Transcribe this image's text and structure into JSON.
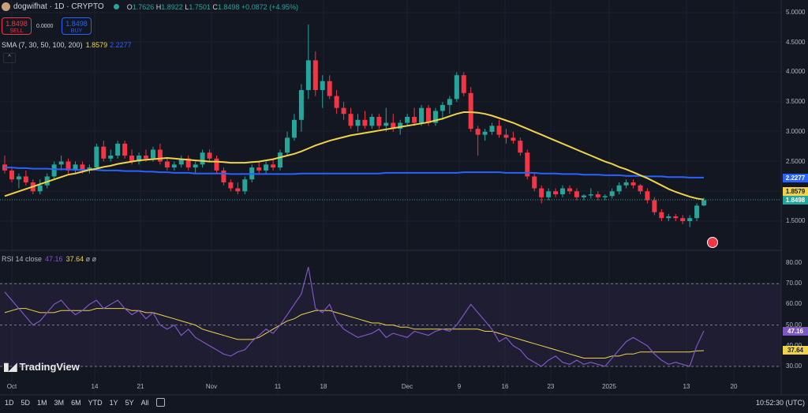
{
  "header": {
    "symbol": "dogwifhat · 1D · CRYPTO",
    "ohlc": {
      "o_label": "O",
      "o": "1.7626",
      "h_label": "H",
      "h": "1.8922",
      "l_label": "L",
      "l": "1.7501",
      "c_label": "C",
      "c": "1.8498",
      "change": "+0.0872 (+4.95%)"
    }
  },
  "trade": {
    "sell_price": "1.8498",
    "sell_label": "SELL",
    "spread": "0.0000",
    "buy_price": "1.8498",
    "buy_label": "BUY"
  },
  "sma": {
    "label": "SMA (7, 30, 50, 100, 200)",
    "val1": "1.8579",
    "val2": "2.2277"
  },
  "rsi": {
    "label": "RSI 14 close",
    "val1": "47.16",
    "val2": "37.64",
    "extra": "ø ø"
  },
  "price_axis": [
    "5.0000",
    "4.5000",
    "4.0000",
    "3.5000",
    "3.0000",
    "2.5000",
    "1.5000"
  ],
  "price_badges": {
    "blue": "2.2277",
    "yellow": "1.8579",
    "green": "1.8498"
  },
  "rsi_axis": [
    "80.00",
    "70.00",
    "60.00",
    "50.00",
    "40.00",
    "30.00"
  ],
  "rsi_badges": {
    "purple": "47.16",
    "yellow": "37.64"
  },
  "x_axis": [
    "Oct",
    "14",
    "21",
    "Nov",
    "11",
    "18",
    "Dec",
    "9",
    "16",
    "23",
    "2025",
    "13",
    "20"
  ],
  "timeframes": [
    "1D",
    "5D",
    "1M",
    "3M",
    "6M",
    "YTD",
    "1Y",
    "5Y",
    "All"
  ],
  "clock": "10:52:30 (UTC)",
  "brand": "TradingView",
  "colors": {
    "bg": "#131722",
    "up": "#26a69a",
    "down": "#f23645",
    "sma_fast": "#f0d34a",
    "sma_slow": "#2962ff",
    "rsi": "#7e57c2"
  },
  "chart_data": {
    "type": "candlestick",
    "price_range": [
      1.2,
      5.1
    ],
    "candles": [
      [
        2.45,
        2.6,
        2.3,
        2.35
      ],
      [
        2.35,
        2.4,
        2.15,
        2.2
      ],
      [
        2.2,
        2.3,
        2.05,
        2.25
      ],
      [
        2.25,
        2.35,
        2.1,
        2.15
      ],
      [
        2.15,
        2.2,
        1.95,
        2.0
      ],
      [
        2.0,
        2.2,
        1.95,
        2.1
      ],
      [
        2.1,
        2.3,
        2.05,
        2.25
      ],
      [
        2.25,
        2.5,
        2.2,
        2.45
      ],
      [
        2.45,
        2.6,
        2.35,
        2.5
      ],
      [
        2.5,
        2.55,
        2.3,
        2.35
      ],
      [
        2.35,
        2.5,
        2.3,
        2.45
      ],
      [
        2.45,
        2.5,
        2.3,
        2.35
      ],
      [
        2.35,
        2.45,
        2.3,
        2.4
      ],
      [
        2.4,
        2.8,
        2.35,
        2.75
      ],
      [
        2.75,
        2.85,
        2.5,
        2.55
      ],
      [
        2.55,
        2.7,
        2.5,
        2.6
      ],
      [
        2.6,
        2.85,
        2.55,
        2.8
      ],
      [
        2.8,
        2.85,
        2.55,
        2.6
      ],
      [
        2.6,
        2.7,
        2.45,
        2.5
      ],
      [
        2.5,
        2.65,
        2.45,
        2.6
      ],
      [
        2.6,
        2.7,
        2.5,
        2.55
      ],
      [
        2.55,
        2.75,
        2.5,
        2.7
      ],
      [
        2.7,
        2.8,
        2.45,
        2.5
      ],
      [
        2.5,
        2.55,
        2.35,
        2.4
      ],
      [
        2.4,
        2.5,
        2.35,
        2.45
      ],
      [
        2.45,
        2.6,
        2.4,
        2.55
      ],
      [
        2.55,
        2.6,
        2.35,
        2.4
      ],
      [
        2.4,
        2.5,
        2.3,
        2.45
      ],
      [
        2.45,
        2.7,
        2.4,
        2.65
      ],
      [
        2.65,
        2.7,
        2.5,
        2.55
      ],
      [
        2.55,
        2.6,
        2.3,
        2.35
      ],
      [
        2.35,
        2.4,
        2.1,
        2.15
      ],
      [
        2.15,
        2.2,
        2.0,
        2.05
      ],
      [
        2.05,
        2.15,
        1.95,
        2.0
      ],
      [
        2.0,
        2.25,
        1.95,
        2.2
      ],
      [
        2.2,
        2.45,
        2.15,
        2.4
      ],
      [
        2.4,
        2.5,
        2.3,
        2.35
      ],
      [
        2.35,
        2.5,
        2.3,
        2.45
      ],
      [
        2.45,
        2.55,
        2.35,
        2.4
      ],
      [
        2.4,
        2.7,
        2.35,
        2.65
      ],
      [
        2.65,
        3.0,
        2.6,
        2.9
      ],
      [
        2.9,
        3.3,
        2.85,
        3.2
      ],
      [
        3.2,
        3.8,
        3.0,
        3.7
      ],
      [
        3.7,
        4.8,
        3.55,
        4.2
      ],
      [
        4.2,
        4.35,
        3.6,
        3.7
      ],
      [
        3.7,
        3.95,
        3.4,
        3.85
      ],
      [
        3.85,
        3.95,
        3.55,
        3.6
      ],
      [
        3.6,
        3.7,
        3.3,
        3.4
      ],
      [
        3.4,
        3.5,
        3.2,
        3.3
      ],
      [
        3.3,
        3.4,
        3.05,
        3.1
      ],
      [
        3.1,
        3.3,
        3.0,
        3.2
      ],
      [
        3.2,
        3.35,
        3.05,
        3.1
      ],
      [
        3.1,
        3.3,
        3.05,
        3.25
      ],
      [
        3.25,
        3.3,
        3.05,
        3.1
      ],
      [
        3.1,
        3.4,
        3.0,
        3.15
      ],
      [
        3.15,
        3.3,
        3.0,
        3.05
      ],
      [
        3.05,
        3.2,
        2.95,
        3.15
      ],
      [
        3.15,
        3.3,
        3.1,
        3.25
      ],
      [
        3.25,
        3.4,
        3.1,
        3.15
      ],
      [
        3.15,
        3.45,
        3.1,
        3.4
      ],
      [
        3.4,
        3.45,
        3.1,
        3.15
      ],
      [
        3.15,
        3.4,
        3.1,
        3.35
      ],
      [
        3.35,
        3.5,
        3.2,
        3.45
      ],
      [
        3.45,
        3.6,
        3.3,
        3.55
      ],
      [
        3.55,
        4.0,
        3.5,
        3.95
      ],
      [
        3.95,
        4.0,
        3.6,
        3.65
      ],
      [
        3.65,
        3.75,
        3.0,
        3.05
      ],
      [
        3.05,
        3.1,
        2.6,
        2.95
      ],
      [
        2.95,
        3.05,
        2.85,
        3.0
      ],
      [
        3.0,
        3.15,
        2.95,
        3.1
      ],
      [
        3.1,
        3.2,
        2.9,
        2.95
      ],
      [
        2.95,
        3.05,
        2.8,
        2.9
      ],
      [
        2.9,
        3.0,
        2.8,
        2.85
      ],
      [
        2.85,
        2.9,
        2.6,
        2.65
      ],
      [
        2.65,
        2.7,
        2.2,
        2.25
      ],
      [
        2.25,
        2.3,
        2.0,
        2.05
      ],
      [
        2.05,
        2.1,
        1.8,
        1.9
      ],
      [
        1.9,
        2.05,
        1.85,
        2.0
      ],
      [
        2.0,
        2.05,
        1.9,
        1.95
      ],
      [
        1.95,
        2.1,
        1.9,
        2.05
      ],
      [
        2.05,
        2.1,
        1.95,
        2.0
      ],
      [
        2.0,
        2.05,
        1.85,
        1.9
      ],
      [
        1.9,
        1.95,
        1.85,
        1.93
      ],
      [
        1.93,
        2.05,
        1.88,
        1.95
      ],
      [
        1.95,
        2.0,
        1.85,
        1.9
      ],
      [
        1.9,
        1.95,
        1.85,
        1.92
      ],
      [
        1.92,
        2.05,
        1.88,
        2.0
      ],
      [
        2.0,
        2.15,
        1.95,
        2.1
      ],
      [
        2.1,
        2.2,
        2.05,
        2.15
      ],
      [
        2.15,
        2.2,
        2.05,
        2.1
      ],
      [
        2.1,
        2.12,
        1.95,
        2.0
      ],
      [
        2.0,
        2.05,
        1.8,
        1.85
      ],
      [
        1.85,
        1.9,
        1.6,
        1.65
      ],
      [
        1.65,
        1.7,
        1.5,
        1.55
      ],
      [
        1.55,
        1.62,
        1.5,
        1.58
      ],
      [
        1.58,
        1.62,
        1.5,
        1.55
      ],
      [
        1.55,
        1.6,
        1.45,
        1.5
      ],
      [
        1.5,
        1.6,
        1.4,
        1.55
      ],
      [
        1.55,
        1.8,
        1.5,
        1.76
      ],
      [
        1.7626,
        1.8922,
        1.7501,
        1.8498
      ]
    ],
    "sma_fast": [
      1.92,
      1.96,
      2.0,
      2.04,
      2.08,
      2.12,
      2.16,
      2.2,
      2.24,
      2.28,
      2.3,
      2.33,
      2.36,
      2.38,
      2.41,
      2.43,
      2.46,
      2.48,
      2.5,
      2.52,
      2.53,
      2.54,
      2.55,
      2.56,
      2.55,
      2.54,
      2.53,
      2.52,
      2.51,
      2.5,
      2.5,
      2.49,
      2.48,
      2.48,
      2.48,
      2.49,
      2.5,
      2.52,
      2.54,
      2.57,
      2.6,
      2.63,
      2.67,
      2.72,
      2.77,
      2.81,
      2.85,
      2.88,
      2.91,
      2.94,
      2.96,
      2.98,
      3.0,
      3.02,
      3.04,
      3.06,
      3.08,
      3.1,
      3.12,
      3.14,
      3.16,
      3.19,
      3.22,
      3.26,
      3.3,
      3.33,
      3.33,
      3.32,
      3.3,
      3.27,
      3.23,
      3.19,
      3.15,
      3.1,
      3.05,
      3.0,
      2.95,
      2.9,
      2.85,
      2.8,
      2.75,
      2.7,
      2.65,
      2.6,
      2.55,
      2.5,
      2.46,
      2.41,
      2.37,
      2.32,
      2.27,
      2.22,
      2.16,
      2.1,
      2.04,
      1.99,
      1.95,
      1.91,
      1.88,
      1.86
    ],
    "sma_slow": [
      2.4,
      2.4,
      2.39,
      2.39,
      2.38,
      2.38,
      2.38,
      2.37,
      2.37,
      2.37,
      2.36,
      2.36,
      2.36,
      2.36,
      2.35,
      2.35,
      2.35,
      2.34,
      2.34,
      2.34,
      2.33,
      2.33,
      2.32,
      2.32,
      2.31,
      2.31,
      2.31,
      2.3,
      2.3,
      2.3,
      2.3,
      2.3,
      2.29,
      2.29,
      2.29,
      2.29,
      2.29,
      2.29,
      2.29,
      2.29,
      2.29,
      2.29,
      2.3,
      2.3,
      2.3,
      2.3,
      2.3,
      2.3,
      2.3,
      2.3,
      2.3,
      2.3,
      2.3,
      2.3,
      2.31,
      2.31,
      2.31,
      2.31,
      2.31,
      2.31,
      2.31,
      2.31,
      2.31,
      2.31,
      2.31,
      2.32,
      2.32,
      2.32,
      2.32,
      2.32,
      2.32,
      2.31,
      2.31,
      2.31,
      2.31,
      2.31,
      2.3,
      2.3,
      2.3,
      2.29,
      2.29,
      2.29,
      2.28,
      2.28,
      2.28,
      2.27,
      2.27,
      2.27,
      2.26,
      2.26,
      2.26,
      2.25,
      2.25,
      2.25,
      2.24,
      2.24,
      2.24,
      2.23,
      2.23,
      2.23
    ],
    "rsi_range": [
      26,
      82
    ],
    "rsi": [
      66,
      62,
      58,
      54,
      50,
      52,
      56,
      60,
      62,
      58,
      55,
      57,
      60,
      62,
      58,
      60,
      62,
      58,
      55,
      57,
      53,
      56,
      50,
      48,
      50,
      45,
      48,
      44,
      42,
      40,
      38,
      36,
      35,
      37,
      38,
      42,
      45,
      48,
      46,
      50,
      55,
      60,
      65,
      78,
      58,
      56,
      60,
      52,
      48,
      46,
      44,
      45,
      46,
      48,
      44,
      46,
      45,
      44,
      47,
      46,
      45,
      47,
      48,
      47,
      50,
      55,
      60,
      56,
      52,
      48,
      42,
      44,
      40,
      38,
      34,
      32,
      30,
      33,
      35,
      32,
      31,
      33,
      31,
      32,
      31,
      30,
      34,
      38,
      42,
      44,
      42,
      40,
      36,
      33,
      31,
      32,
      31,
      30,
      40,
      47.16
    ],
    "rsi_ma": [
      56,
      57,
      58,
      58,
      57,
      56,
      56,
      56,
      57,
      57,
      57,
      57,
      57,
      58,
      58,
      58,
      58,
      58,
      57,
      57,
      56,
      56,
      55,
      54,
      53,
      52,
      51,
      50,
      48,
      47,
      46,
      45,
      44,
      43,
      43,
      43,
      44,
      46,
      48,
      50,
      52,
      53,
      55,
      56,
      57,
      57,
      57,
      56,
      55,
      54,
      53,
      52,
      51,
      51,
      50,
      50,
      49,
      49,
      48,
      48,
      48,
      48,
      48,
      48,
      48,
      48,
      48,
      48,
      47,
      47,
      46,
      45,
      44,
      43,
      42,
      41,
      40,
      39,
      38,
      37,
      36,
      35,
      34,
      34,
      34,
      34,
      35,
      35,
      36,
      36,
      37,
      37,
      37,
      37,
      37,
      37,
      37,
      37,
      37.5,
      37.64
    ]
  }
}
